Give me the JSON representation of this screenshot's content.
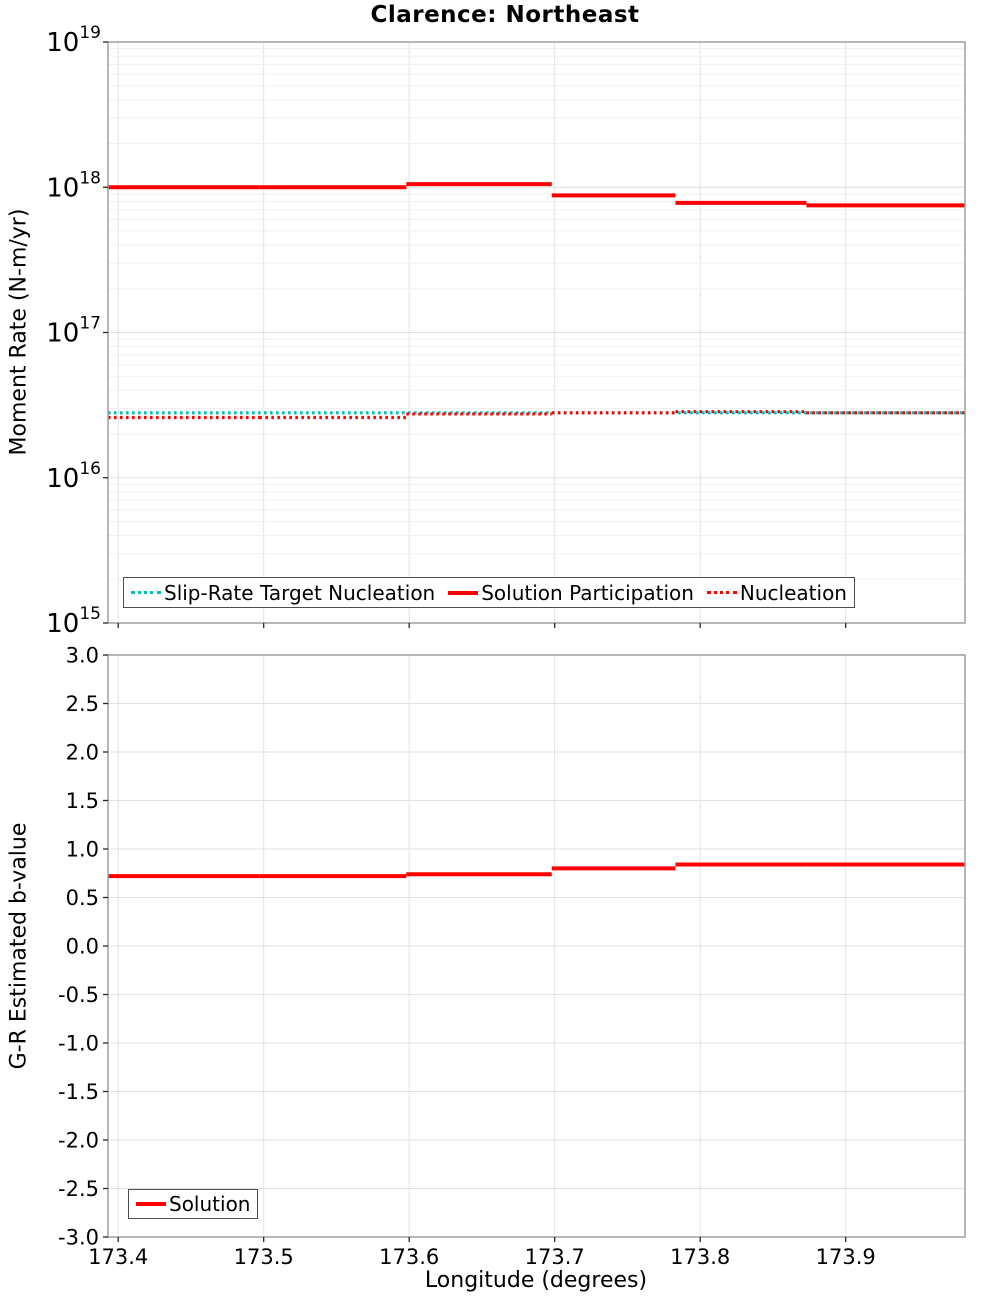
{
  "chart_title": "Clarence: Northeast",
  "accent_colors": {
    "solution_red": "#ff0000",
    "target_cyan": "#00bfbf"
  },
  "chart_data": [
    {
      "type": "line",
      "panel": "moment-rate",
      "title": "Clarence: Northeast",
      "ylabel": "Moment Rate (N-m/yr)",
      "xlabel": "",
      "yscale": "log",
      "ylim": [
        1000000000000000.0,
        1e+19
      ],
      "ytick_exponents": [
        15,
        16,
        17,
        18,
        19
      ],
      "xlim": [
        173.393,
        173.982
      ],
      "xticks": [
        173.4,
        173.5,
        173.6,
        173.7,
        173.8,
        173.9
      ],
      "xtick_labels": [
        "173.4",
        "173.5",
        "173.6",
        "173.7",
        "173.8",
        "173.9"
      ],
      "show_xtick_labels": false,
      "grid": true,
      "legend_position": "lower-left",
      "legend": [
        {
          "label": "Slip-Rate Target Nucleation",
          "color": "#00bfbf",
          "style": "dotted"
        },
        {
          "label": "Solution Participation",
          "color": "#ff0000",
          "style": "solid"
        },
        {
          "label": "Nucleation",
          "color": "#ff0000",
          "style": "dotted"
        }
      ],
      "series": [
        {
          "name": "Slip-Rate Target Nucleation",
          "color": "#00bfbf",
          "style": "dotted",
          "width": 3.2,
          "steps": [
            [
              173.393,
              173.982,
              2.8e+16
            ]
          ]
        },
        {
          "name": "Solution Participation",
          "color": "#ff0000",
          "style": "solid",
          "width": 4,
          "steps": [
            [
              173.393,
              173.497,
              1e+18
            ],
            [
              173.497,
              173.598,
              1e+18
            ],
            [
              173.598,
              173.698,
              1.05e+18
            ],
            [
              173.698,
              173.783,
              8.8e+17
            ],
            [
              173.783,
              173.873,
              7.8e+17
            ],
            [
              173.873,
              173.982,
              7.5e+17
            ]
          ]
        },
        {
          "name": "Nucleation",
          "color": "#ff0000",
          "style": "dotted",
          "width": 3.2,
          "steps": [
            [
              173.393,
              173.497,
              2.6e+16
            ],
            [
              173.497,
              173.598,
              2.6e+16
            ],
            [
              173.598,
              173.698,
              2.75e+16
            ],
            [
              173.698,
              173.783,
              2.8e+16
            ],
            [
              173.783,
              173.873,
              2.85e+16
            ],
            [
              173.873,
              173.982,
              2.8e+16
            ]
          ]
        }
      ]
    },
    {
      "type": "line",
      "panel": "b-value",
      "title": "",
      "ylabel": "G-R Estimated b-value",
      "xlabel": "Longitude (degrees)",
      "yscale": "linear",
      "ylim": [
        -3.0,
        3.0
      ],
      "yticks": [
        3.0,
        2.5,
        2.0,
        1.5,
        1.0,
        0.5,
        0.0,
        -0.5,
        -1.0,
        -1.5,
        -2.0,
        -2.5,
        -3.0
      ],
      "ytick_labels": [
        "3.0",
        "2.5",
        "2.0",
        "1.5",
        "1.0",
        "0.5",
        "0.0",
        "-0.5",
        "-1.0",
        "-1.5",
        "-2.0",
        "-2.5",
        "-3.0"
      ],
      "xlim": [
        173.393,
        173.982
      ],
      "xticks": [
        173.4,
        173.5,
        173.6,
        173.7,
        173.8,
        173.9
      ],
      "xtick_labels": [
        "173.4",
        "173.5",
        "173.6",
        "173.7",
        "173.8",
        "173.9"
      ],
      "show_xtick_labels": true,
      "grid": true,
      "legend_position": "lower-left",
      "legend": [
        {
          "label": "Solution",
          "color": "#ff0000",
          "style": "solid"
        }
      ],
      "series": [
        {
          "name": "Solution",
          "color": "#ff0000",
          "style": "solid",
          "width": 4,
          "steps": [
            [
              173.393,
              173.497,
              0.72
            ],
            [
              173.497,
              173.598,
              0.72
            ],
            [
              173.598,
              173.698,
              0.74
            ],
            [
              173.698,
              173.783,
              0.8
            ],
            [
              173.783,
              173.873,
              0.84
            ],
            [
              173.873,
              173.982,
              0.84
            ]
          ]
        }
      ]
    }
  ]
}
